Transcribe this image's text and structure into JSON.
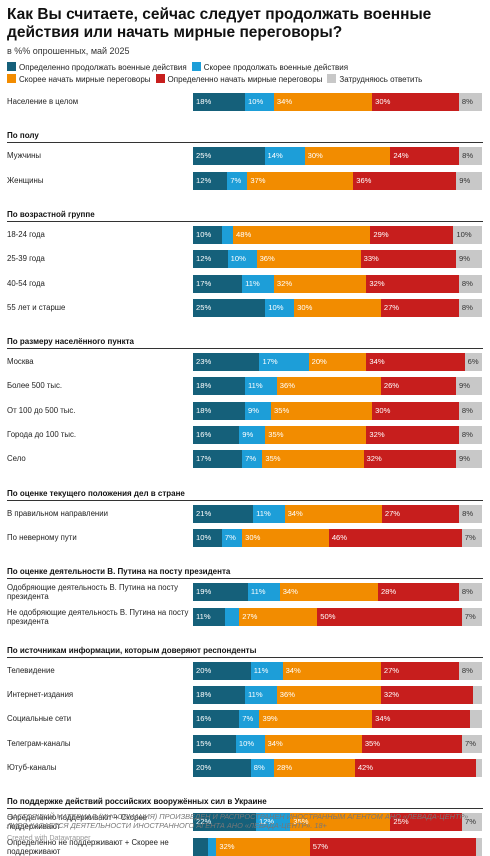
{
  "title": "Как Вы считаете, сейчас следует продолжать военные действия или начать мирные переговоры?",
  "subtitle": "в %% опрошенных, май 2025",
  "footer_note": "НАСТОЯЩИЙ МАТЕРИАЛ (ИНФОРМАЦИЯ) ПРОИЗВЕДЕН И РАСПРОСТРАНЕН ИНОСТРАННЫМ АГЕНТОМ АНО «ЛЕВАДА-ЦЕНТР» ЛИБО КАСАЕТСЯ ДЕЯТЕЛЬНОСТИ ИНОСТРАННОГО АГЕНТА АНО «ЛЕВАДА-ЦЕНТР». 18+",
  "credit": "Created with Datawrapper",
  "chart_data": {
    "type": "bar",
    "orientation": "horizontal",
    "stacked": true,
    "xlim": [
      0,
      100
    ],
    "legend_position": "top",
    "series": [
      {
        "name": "Определенно продолжать военные действия",
        "color": "#15607a"
      },
      {
        "name": "Скорее продолжать военные действия",
        "color": "#1d9ed8"
      },
      {
        "name": "Скорее начать мирные переговоры",
        "color": "#f28c00"
      },
      {
        "name": "Определенно начать мирные переговоры",
        "color": "#c71e1d"
      },
      {
        "name": "Затрудняюсь ответить",
        "color": "#c8c8c8"
      }
    ],
    "groups": [
      {
        "name": "",
        "rows": [
          {
            "label": "Население в целом",
            "values": [
              18,
              10,
              34,
              30,
              8
            ]
          }
        ]
      },
      {
        "name": "По полу",
        "rows": [
          {
            "label": "Мужчины",
            "values": [
              25,
              14,
              30,
              24,
              8
            ]
          },
          {
            "label": "Женщины",
            "values": [
              12,
              7,
              37,
              36,
              9
            ]
          }
        ]
      },
      {
        "name": "По возрастной группе",
        "rows": [
          {
            "label": "18-24 года",
            "values": [
              10,
              4,
              48,
              29,
              10
            ]
          },
          {
            "label": "25-39 года",
            "values": [
              12,
              10,
              36,
              33,
              9
            ]
          },
          {
            "label": "40-54 года",
            "values": [
              17,
              11,
              32,
              32,
              8
            ]
          },
          {
            "label": "55 лет и старше",
            "values": [
              25,
              10,
              30,
              27,
              8
            ]
          }
        ]
      },
      {
        "name": "По размеру населённого пункта",
        "rows": [
          {
            "label": "Москва",
            "values": [
              23,
              17,
              20,
              34,
              6
            ]
          },
          {
            "label": "Более 500 тыс.",
            "values": [
              18,
              11,
              36,
              26,
              9
            ]
          },
          {
            "label": "От 100 до 500 тыс.",
            "values": [
              18,
              9,
              35,
              30,
              8
            ]
          },
          {
            "label": "Города до 100 тыс.",
            "values": [
              16,
              9,
              35,
              32,
              8
            ]
          },
          {
            "label": "Село",
            "values": [
              17,
              7,
              35,
              32,
              9
            ]
          }
        ]
      },
      {
        "name": "По оценке текущего положения дел в стране",
        "rows": [
          {
            "label": "В правильном направлении",
            "values": [
              21,
              11,
              34,
              27,
              8
            ]
          },
          {
            "label": "По неверному пути",
            "values": [
              10,
              7,
              30,
              46,
              7
            ]
          }
        ]
      },
      {
        "name": "По оценке деятельности В. Путина на посту президента",
        "rows": [
          {
            "label": "Одобряющие деятельность В. Путина на посту президента",
            "values": [
              19,
              11,
              34,
              28,
              8
            ]
          },
          {
            "label": "Не одобряющие деятельность В. Путина на посту президента",
            "values": [
              11,
              5,
              27,
              50,
              7
            ]
          }
        ]
      },
      {
        "name": "По источникам информации, которым доверяют респонденты",
        "rows": [
          {
            "label": "Телевидение",
            "values": [
              20,
              11,
              34,
              27,
              8
            ]
          },
          {
            "label": "Интернет-издания",
            "values": [
              18,
              11,
              36,
              32,
              3
            ]
          },
          {
            "label": "Социальные сети",
            "values": [
              16,
              7,
              39,
              34,
              4
            ]
          },
          {
            "label": "Телеграм-каналы",
            "values": [
              15,
              10,
              34,
              35,
              7
            ]
          },
          {
            "label": "Ютуб-каналы",
            "values": [
              20,
              8,
              28,
              42,
              2
            ]
          }
        ]
      },
      {
        "name": "По поддержке действий российских вооружённых сил в Украине",
        "rows": [
          {
            "label": "Определённо поддерживают + Скорее поддерживают",
            "values": [
              22,
              12,
              35,
              25,
              7
            ]
          },
          {
            "label": "Определённо не поддерживают + Скорее не поддерживают",
            "values": [
              5,
              3,
              32,
              57,
              2
            ]
          }
        ]
      }
    ]
  }
}
